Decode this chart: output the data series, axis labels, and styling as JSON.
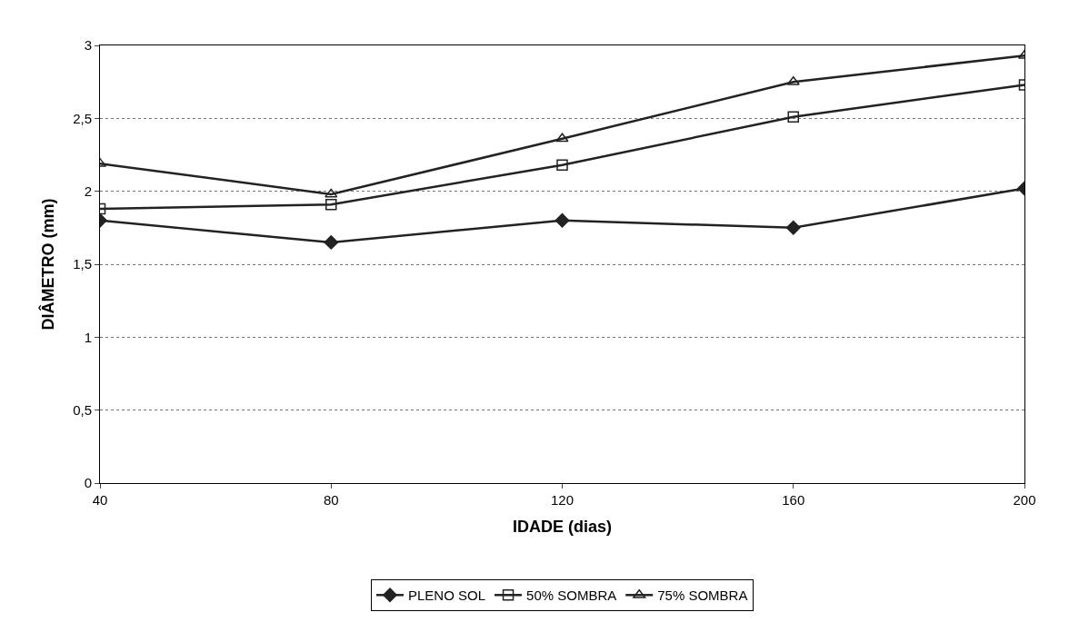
{
  "chart_data": {
    "type": "line",
    "xlabel": "IDADE (dias)",
    "ylabel": "DIÂMETRO (mm)",
    "x": [
      40,
      80,
      120,
      160,
      200
    ],
    "series": [
      {
        "name": "PLENO SOL",
        "color": "#222222",
        "marker": "diamond",
        "values": [
          1.8,
          1.65,
          1.8,
          1.75,
          2.02
        ]
      },
      {
        "name": "50% SOMBRA",
        "color": "#222222",
        "marker": "square",
        "values": [
          1.88,
          1.91,
          2.18,
          2.51,
          2.73
        ]
      },
      {
        "name": "75% SOMBRA",
        "color": "#222222",
        "marker": "triangle",
        "values": [
          2.19,
          1.98,
          2.36,
          2.75,
          2.93
        ]
      }
    ],
    "xlim": [
      40,
      200
    ],
    "xticks": [
      40,
      80,
      120,
      160,
      200
    ],
    "ylim": [
      0,
      3
    ],
    "yticks": [
      0,
      {
        "value": 0.5,
        "label": "0,5"
      },
      1,
      {
        "value": 1.5,
        "label": "1,5"
      },
      2,
      {
        "value": 2.5,
        "label": "2,5"
      },
      3
    ],
    "grid": "y",
    "legend": "bottom",
    "line_style": "solid"
  }
}
